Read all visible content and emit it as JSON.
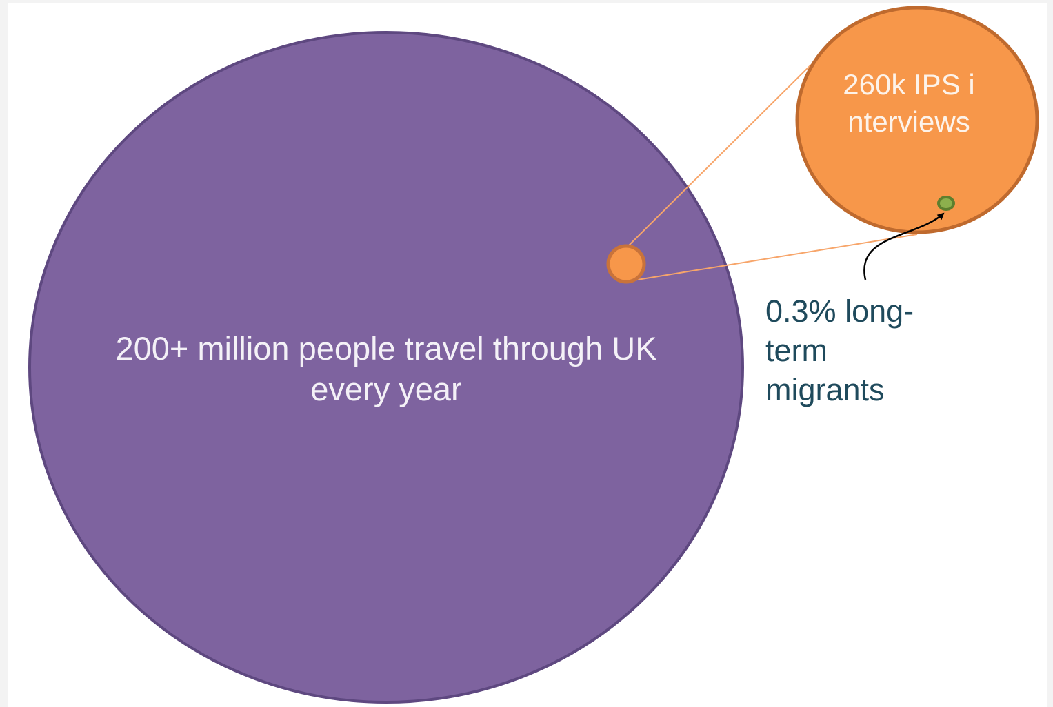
{
  "diagram": {
    "large_circle": {
      "label": "200+ million people travel through UK every year",
      "fill": "#7e639f",
      "stroke": "#5e4880"
    },
    "sample_dot": {
      "fill": "#f7974a",
      "stroke": "#c9733a"
    },
    "zoom_circle": {
      "label": "260k IPS interviews",
      "fill": "#f7974a",
      "stroke": "#bf6a2e"
    },
    "migrant_dot": {
      "fill": "#8db04d",
      "stroke": "#5e7f2e"
    },
    "annotation": {
      "label": "0.3% long-term migrants",
      "color": "#1f4a5c"
    },
    "connector_color": "#f7a56a"
  }
}
